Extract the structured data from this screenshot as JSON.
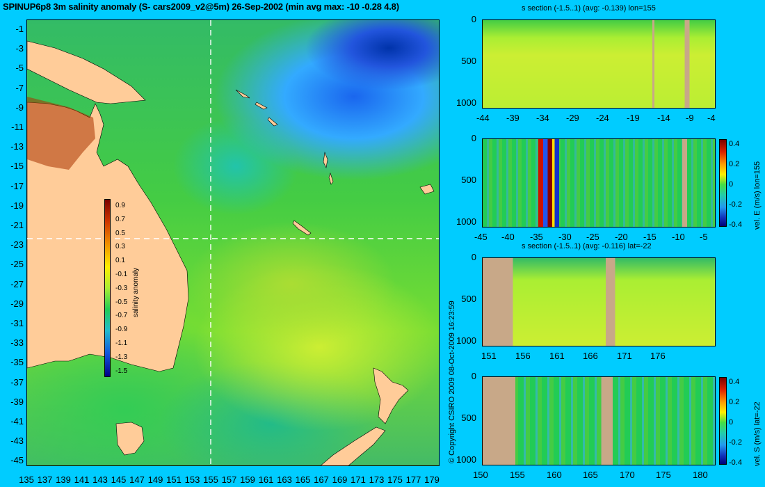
{
  "title": "SPINUP6p8 3m salinity anomaly (S- cars2009_v2@5m) 26-Sep-2002 (min avg max: -10 -0.28 4.8)",
  "map": {
    "lat_ticks": [
      "-1",
      "-3",
      "-5",
      "-7",
      "-9",
      "-11",
      "-13",
      "-15",
      "-17",
      "-19",
      "-21",
      "-23",
      "-25",
      "-27",
      "-29",
      "-31",
      "-33",
      "-35",
      "-37",
      "-39",
      "-41",
      "-43",
      "-45"
    ],
    "lon_ticks": [
      "135",
      "137",
      "139",
      "141",
      "143",
      "145",
      "147",
      "149",
      "151",
      "153",
      "155",
      "157",
      "159",
      "161",
      "163",
      "165",
      "167",
      "169",
      "171",
      "173",
      "175",
      "177",
      "179"
    ],
    "section_lon": 155,
    "section_lat": -22,
    "land_color": "#ffcc99",
    "colorbar": {
      "label": "salinity anomaly",
      "ticks": [
        "0.9",
        "0.7",
        "0.5",
        "0.3",
        "0.1",
        "-0.1",
        "-0.3",
        "-0.5",
        "-0.7",
        "-0.9",
        "-1.1",
        "-1.3",
        "-1.5"
      ]
    }
  },
  "copyright": "© Copyright CSIRO 2009   08-Oct-2009 16:23:59",
  "panels": [
    {
      "title": "s section (-1.5..1) (avg: -0.139) lon=155",
      "x_ticks": [
        "-44",
        "-39",
        "-34",
        "-29",
        "-24",
        "-19",
        "-14",
        "-9",
        "-4"
      ],
      "y_ticks": [
        "0",
        "500",
        "1000"
      ]
    },
    {
      "title": "",
      "x_ticks": [
        "-45",
        "-40",
        "-35",
        "-30",
        "-25",
        "-20",
        "-15",
        "-10",
        "-5"
      ],
      "y_ticks": [
        "0",
        "500",
        "1000"
      ],
      "colorbar_ticks": [
        "0.4",
        "0.2",
        "0",
        "-0.2",
        "-0.4"
      ],
      "colorbar_label": "vel. E (m/s) lon=155"
    },
    {
      "title": "s section (-1.5..1) (avg: -0.116) lat=-22",
      "x_ticks": [
        "151",
        "156",
        "161",
        "166",
        "171",
        "176"
      ],
      "y_ticks": [
        "0",
        "500",
        "1000"
      ]
    },
    {
      "title": "",
      "x_ticks": [
        "150",
        "155",
        "160",
        "165",
        "170",
        "175",
        "180"
      ],
      "y_ticks": [
        "0",
        "500",
        "1000"
      ],
      "colorbar_ticks": [
        "0.4",
        "0.2",
        "0",
        "-0.2",
        "-0.4"
      ],
      "colorbar_label": "vel. S (m/s) lat=-22"
    }
  ]
}
